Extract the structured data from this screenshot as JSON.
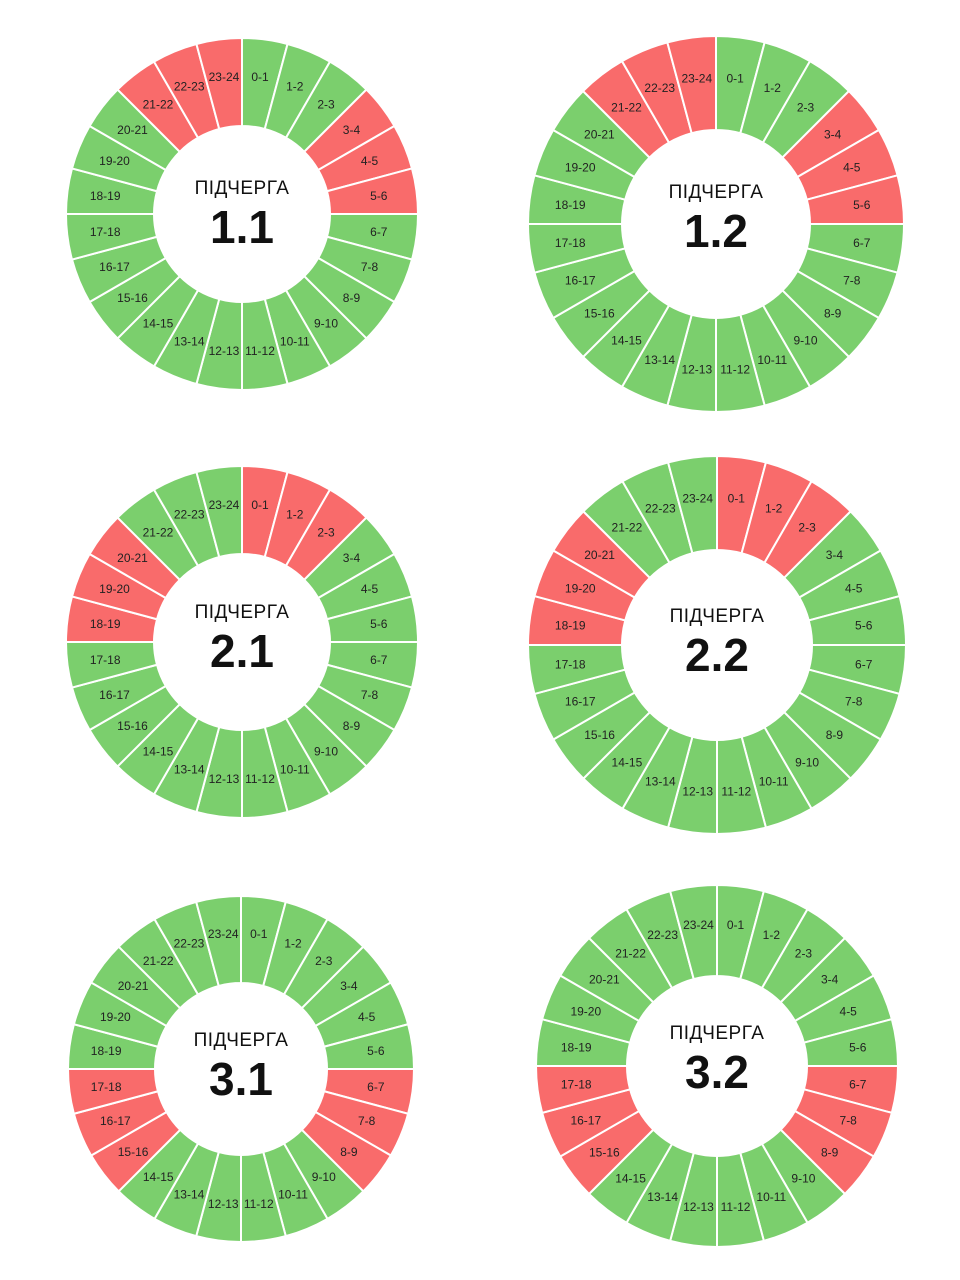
{
  "colors": {
    "on": "#7bcf6d",
    "off": "#f96b6b",
    "divider": "#ffffff"
  },
  "legend_states": {
    "on": "green",
    "off": "red"
  },
  "center_title": "ПІДЧЕРГА",
  "chart_data": [
    {
      "type": "pie",
      "title": "ПІДЧЕРГА 1.1",
      "subqueue": "1.1",
      "categories": [
        "0-1",
        "1-2",
        "2-3",
        "3-4",
        "4-5",
        "5-6",
        "6-7",
        "7-8",
        "8-9",
        "9-10",
        "10-11",
        "11-12",
        "12-13",
        "13-14",
        "14-15",
        "15-16",
        "16-17",
        "17-18",
        "18-19",
        "19-20",
        "20-21",
        "21-22",
        "22-23",
        "23-24"
      ],
      "states": [
        "on",
        "on",
        "on",
        "off",
        "off",
        "off",
        "on",
        "on",
        "on",
        "on",
        "on",
        "on",
        "on",
        "on",
        "on",
        "on",
        "on",
        "on",
        "on",
        "on",
        "on",
        "off",
        "off",
        "off"
      ]
    },
    {
      "type": "pie",
      "title": "ПІДЧЕРГА 1.2",
      "subqueue": "1.2",
      "categories": [
        "0-1",
        "1-2",
        "2-3",
        "3-4",
        "4-5",
        "5-6",
        "6-7",
        "7-8",
        "8-9",
        "9-10",
        "10-11",
        "11-12",
        "12-13",
        "13-14",
        "14-15",
        "15-16",
        "16-17",
        "17-18",
        "18-19",
        "19-20",
        "20-21",
        "21-22",
        "22-23",
        "23-24"
      ],
      "states": [
        "on",
        "on",
        "on",
        "off",
        "off",
        "off",
        "on",
        "on",
        "on",
        "on",
        "on",
        "on",
        "on",
        "on",
        "on",
        "on",
        "on",
        "on",
        "on",
        "on",
        "on",
        "off",
        "off",
        "off"
      ]
    },
    {
      "type": "pie",
      "title": "ПІДЧЕРГА 2.1",
      "subqueue": "2.1",
      "categories": [
        "0-1",
        "1-2",
        "2-3",
        "3-4",
        "4-5",
        "5-6",
        "6-7",
        "7-8",
        "8-9",
        "9-10",
        "10-11",
        "11-12",
        "12-13",
        "13-14",
        "14-15",
        "15-16",
        "16-17",
        "17-18",
        "18-19",
        "19-20",
        "20-21",
        "21-22",
        "22-23",
        "23-24"
      ],
      "states": [
        "off",
        "off",
        "off",
        "on",
        "on",
        "on",
        "on",
        "on",
        "on",
        "on",
        "on",
        "on",
        "on",
        "on",
        "on",
        "on",
        "on",
        "on",
        "off",
        "off",
        "off",
        "on",
        "on",
        "on"
      ]
    },
    {
      "type": "pie",
      "title": "ПІДЧЕРГА 2.2",
      "subqueue": "2.2",
      "categories": [
        "0-1",
        "1-2",
        "2-3",
        "3-4",
        "4-5",
        "5-6",
        "6-7",
        "7-8",
        "8-9",
        "9-10",
        "10-11",
        "11-12",
        "12-13",
        "13-14",
        "14-15",
        "15-16",
        "16-17",
        "17-18",
        "18-19",
        "19-20",
        "20-21",
        "21-22",
        "22-23",
        "23-24"
      ],
      "states": [
        "off",
        "off",
        "off",
        "on",
        "on",
        "on",
        "on",
        "on",
        "on",
        "on",
        "on",
        "on",
        "on",
        "on",
        "on",
        "on",
        "on",
        "on",
        "off",
        "off",
        "off",
        "on",
        "on",
        "on"
      ]
    },
    {
      "type": "pie",
      "title": "ПІДЧЕРГА 3.1",
      "subqueue": "3.1",
      "categories": [
        "0-1",
        "1-2",
        "2-3",
        "3-4",
        "4-5",
        "5-6",
        "6-7",
        "7-8",
        "8-9",
        "9-10",
        "10-11",
        "11-12",
        "12-13",
        "13-14",
        "14-15",
        "15-16",
        "16-17",
        "17-18",
        "18-19",
        "19-20",
        "20-21",
        "21-22",
        "22-23",
        "23-24"
      ],
      "states": [
        "on",
        "on",
        "on",
        "on",
        "on",
        "on",
        "off",
        "off",
        "off",
        "on",
        "on",
        "on",
        "on",
        "on",
        "on",
        "off",
        "off",
        "off",
        "on",
        "on",
        "on",
        "on",
        "on",
        "on"
      ]
    },
    {
      "type": "pie",
      "title": "ПІДЧЕРГА 3.2",
      "subqueue": "3.2",
      "categories": [
        "0-1",
        "1-2",
        "2-3",
        "3-4",
        "4-5",
        "5-6",
        "6-7",
        "7-8",
        "8-9",
        "9-10",
        "10-11",
        "11-12",
        "12-13",
        "13-14",
        "14-15",
        "15-16",
        "16-17",
        "17-18",
        "18-19",
        "19-20",
        "20-21",
        "21-22",
        "22-23",
        "23-24"
      ],
      "states": [
        "on",
        "on",
        "on",
        "on",
        "on",
        "on",
        "off",
        "off",
        "off",
        "on",
        "on",
        "on",
        "on",
        "on",
        "on",
        "off",
        "off",
        "off",
        "on",
        "on",
        "on",
        "on",
        "on",
        "on"
      ]
    }
  ]
}
